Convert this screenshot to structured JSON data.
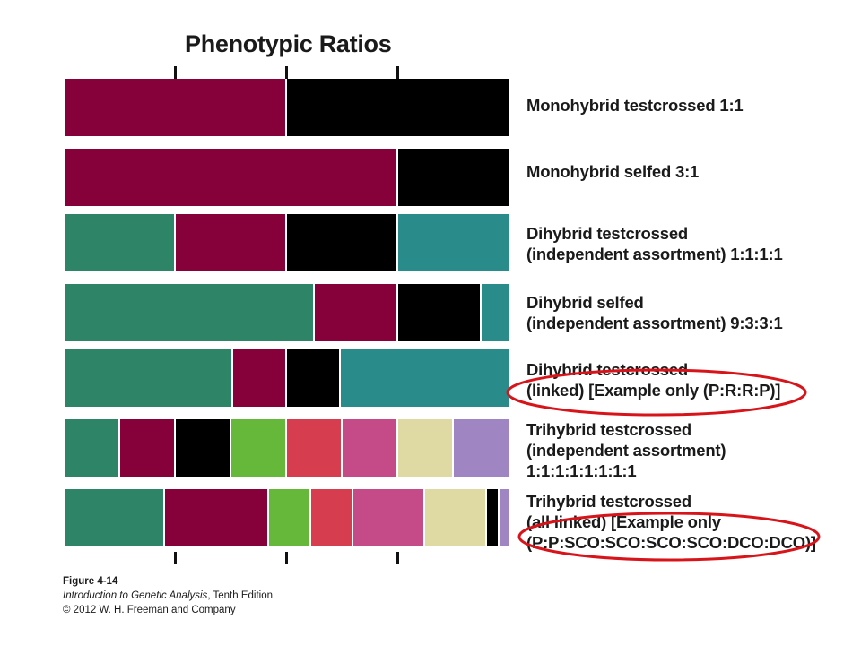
{
  "title": "Phenotypic Ratios",
  "colors": {
    "maroon": "#86003a",
    "black": "#000000",
    "green_dark": "#2e8467",
    "teal": "#2a8c8a",
    "green_bright": "#66b83a",
    "red": "#d63e4f",
    "pink": "#c44a88",
    "beige": "#dfd9a3",
    "lavender": "#9f86c2",
    "annotation": "#d8141b"
  },
  "rows": [
    {
      "label_lines": [
        "Monohybrid testcrossed 1:1"
      ],
      "segments": [
        {
          "color": "maroon",
          "fraction": 0.5
        },
        {
          "color": "black",
          "fraction": 0.5
        }
      ]
    },
    {
      "label_lines": [
        "Monohybrid selfed 3:1"
      ],
      "segments": [
        {
          "color": "maroon",
          "fraction": 0.75
        },
        {
          "color": "black",
          "fraction": 0.25
        }
      ]
    },
    {
      "label_lines": [
        "Dihybrid testcrossed",
        "(independent assortment) 1:1:1:1"
      ],
      "segments": [
        {
          "color": "green_dark",
          "fraction": 0.25
        },
        {
          "color": "maroon",
          "fraction": 0.25
        },
        {
          "color": "black",
          "fraction": 0.25
        },
        {
          "color": "teal",
          "fraction": 0.25
        }
      ]
    },
    {
      "label_lines": [
        "Dihybrid selfed",
        "(independent assortment) 9:3:3:1"
      ],
      "segments": [
        {
          "color": "green_dark",
          "fraction": 0.5625
        },
        {
          "color": "maroon",
          "fraction": 0.1875
        },
        {
          "color": "black",
          "fraction": 0.1875
        },
        {
          "color": "teal",
          "fraction": 0.0625
        }
      ]
    },
    {
      "label_lines": [
        "Dihybrid testcrossed",
        "(linked) [Example only (P:R:R:P)]"
      ],
      "circled": true,
      "segments": [
        {
          "color": "green_dark",
          "fraction": 0.38
        },
        {
          "color": "maroon",
          "fraction": 0.12
        },
        {
          "color": "black",
          "fraction": 0.12
        },
        {
          "color": "teal",
          "fraction": 0.38
        }
      ]
    },
    {
      "label_lines": [
        "Trihybrid testcrossed",
        "(independent assortment)",
        "1:1:1:1:1:1:1:1"
      ],
      "segments": [
        {
          "color": "green_dark",
          "fraction": 0.125
        },
        {
          "color": "maroon",
          "fraction": 0.125
        },
        {
          "color": "black",
          "fraction": 0.125
        },
        {
          "color": "green_bright",
          "fraction": 0.125
        },
        {
          "color": "red",
          "fraction": 0.125
        },
        {
          "color": "pink",
          "fraction": 0.125
        },
        {
          "color": "beige",
          "fraction": 0.125
        },
        {
          "color": "lavender",
          "fraction": 0.125
        }
      ]
    },
    {
      "label_lines": [
        "Trihybrid testcrossed",
        "(all linked) [Example only",
        "(P:P:SCO:SCO:SCO:SCO:DCO:DCO)]"
      ],
      "circled": true,
      "segments": [
        {
          "color": "green_dark",
          "fraction": 0.225
        },
        {
          "color": "maroon",
          "fraction": 0.235
        },
        {
          "color": "green_bright",
          "fraction": 0.095
        },
        {
          "color": "red",
          "fraction": 0.095
        },
        {
          "color": "pink",
          "fraction": 0.16
        },
        {
          "color": "beige",
          "fraction": 0.14
        },
        {
          "color": "black",
          "fraction": 0.028
        },
        {
          "color": "lavender",
          "fraction": 0.022
        }
      ]
    }
  ],
  "footer": {
    "figure": "Figure 4-14",
    "book_title": "Introduction to Genetic Analysis",
    "edition": ", Tenth Edition",
    "copyright": "© 2012 W. H. Freeman and Company"
  }
}
